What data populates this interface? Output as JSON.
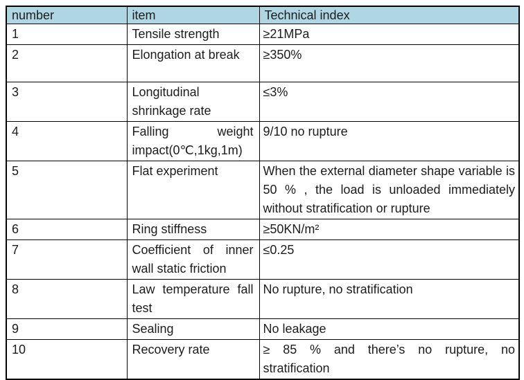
{
  "table": {
    "header_bg": "#aed7e3",
    "border_color": "#000000",
    "text_color": "#1c1c1c",
    "columns": [
      {
        "key": "number",
        "label": "number"
      },
      {
        "key": "item",
        "label": "item"
      },
      {
        "key": "index",
        "label": "Technical index"
      }
    ],
    "rows": [
      {
        "number": "1",
        "item": "Tensile strength",
        "index": "≥21MPa"
      },
      {
        "number": "2",
        "item": "Elongation at break",
        "index": "≥350%"
      },
      {
        "number": "3",
        "item": "Longitudinal shrinkage rate",
        "index": "≤3%"
      },
      {
        "number": "4",
        "item": "Falling weight impact(0℃,1kg,1m)",
        "index": "9/10 no rupture"
      },
      {
        "number": "5",
        "item": "Flat experiment",
        "index": "When the external diameter shape variable is 50 % , the load is unloaded immediately without stratification or rupture"
      },
      {
        "number": "6",
        "item": "Ring stiffness",
        "index": "≥50KN/m²"
      },
      {
        "number": "7",
        "item": "Coefficient of inner wall static friction",
        "index": "≤0.25"
      },
      {
        "number": "8",
        "item": "Law temperature fall test",
        "index": "No rupture, no stratification"
      },
      {
        "number": "9",
        "item": "Sealing",
        "index": "No leakage"
      },
      {
        "number": "10",
        "item": "Recovery rate",
        "index": "≥ 85 % and there’s no rupture, no stratification"
      }
    ]
  }
}
